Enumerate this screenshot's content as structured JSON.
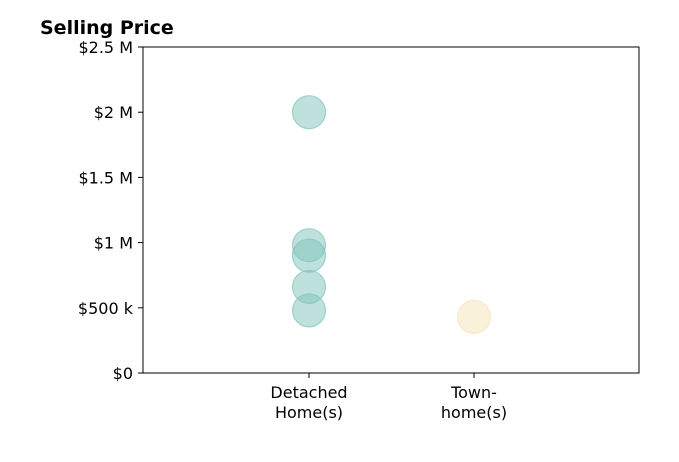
{
  "chart_data": {
    "type": "scatter",
    "title": "Selling Price",
    "xlabel": "",
    "ylabel": "",
    "categories": [
      [
        "Detached",
        "Home(s)"
      ],
      [
        "Town-",
        "home(s)"
      ]
    ],
    "ylim": [
      0,
      2500000
    ],
    "yticks": [
      0,
      500000,
      1000000,
      1500000,
      2000000,
      2500000
    ],
    "ytick_labels": [
      "$0",
      "$500 k",
      "$1 M",
      "$1.5 M",
      "$2 M",
      "$2.5 M"
    ],
    "grid": false,
    "legend": "none",
    "series": [
      {
        "category_index": 0,
        "color": "#7fc4bb",
        "values": [
          2000000,
          980000,
          900000,
          660000,
          480000
        ]
      },
      {
        "category_index": 1,
        "color": "#f5e3b8",
        "values": [
          430000
        ]
      }
    ]
  }
}
